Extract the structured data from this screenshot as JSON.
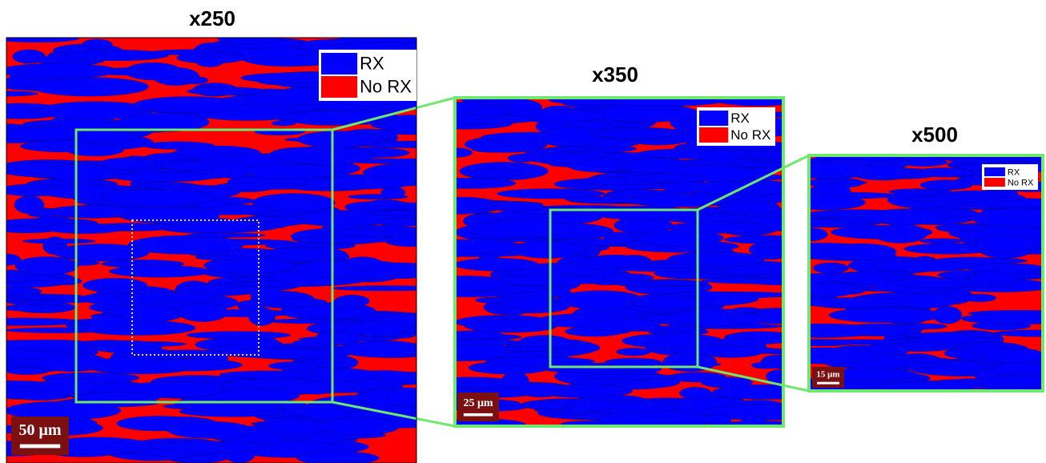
{
  "panels": [
    {
      "title": "x250",
      "legend": [
        {
          "label": "RX",
          "color": "#0000ff"
        },
        {
          "label": "No RX",
          "color": "#ff0000"
        }
      ],
      "scale_bar": "50 μm"
    },
    {
      "title": "x350",
      "legend": [
        {
          "label": "RX",
          "color": "#0000ff"
        },
        {
          "label": "No RX",
          "color": "#ff0000"
        }
      ],
      "scale_bar": "25 μm"
    },
    {
      "title": "x500",
      "legend": [
        {
          "label": "RX",
          "color": "#0000ff"
        },
        {
          "label": "No RX",
          "color": "#ff0000"
        }
      ],
      "scale_bar": "15 μm"
    }
  ]
}
